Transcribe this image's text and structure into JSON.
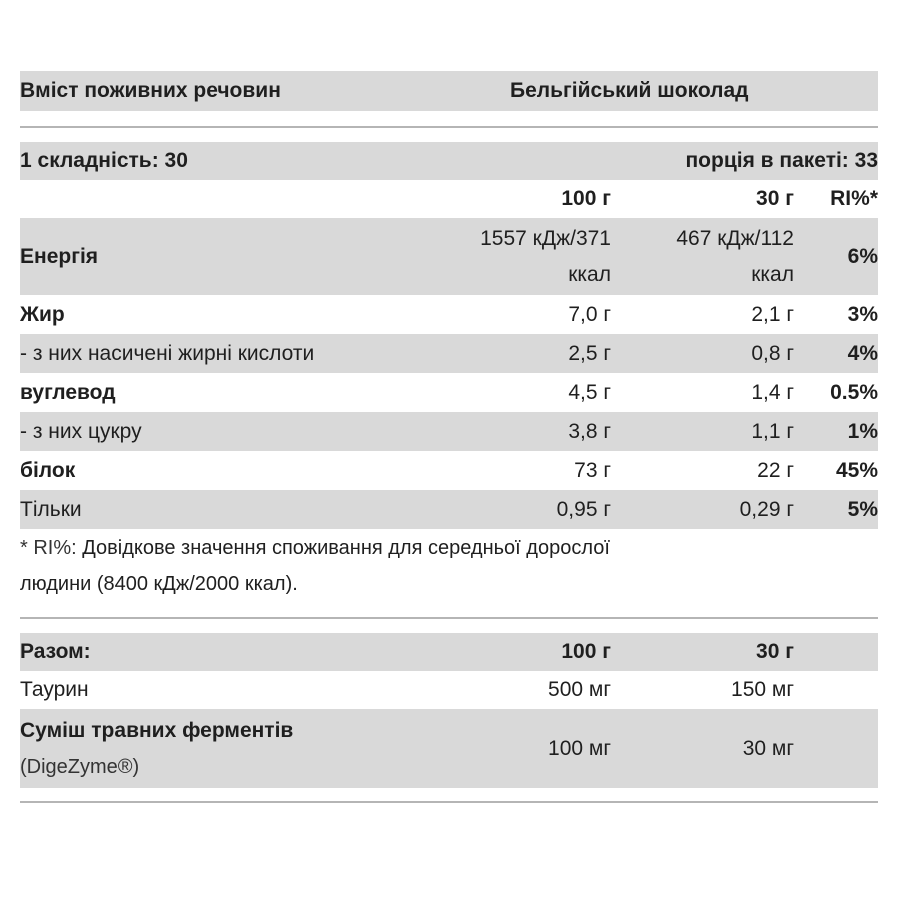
{
  "header": {
    "title_left": "Вміст поживних речовин",
    "title_right": "Бельгійський шоколад"
  },
  "serving": {
    "left": "1 складність: 30",
    "right": "порція в пакеті: 33"
  },
  "columns": {
    "per100": "100 г",
    "per30": "30 г",
    "ri": "RI%*"
  },
  "nutrients": [
    {
      "name": "Енергія",
      "per100_line1": "1557 кДж/371",
      "per100_line2": "ккал",
      "per30_line1": "467 кДж/112",
      "per30_line2": "ккал",
      "ri": "6%"
    },
    {
      "name": "Жир",
      "per100": "7,0 г",
      "per30": "2,1 г",
      "ri": "3%"
    },
    {
      "name": "- з них насичені жирні кислоти",
      "per100": "2,5 г",
      "per30": "0,8 г",
      "ri": "4%"
    },
    {
      "name": "вуглевод",
      "per100": "4,5 г",
      "per30": "1,4 г",
      "ri": "0.5%"
    },
    {
      "name": "- з них цукру",
      "per100": "3,8 г",
      "per30": "1,1 г",
      "ri": "1%"
    },
    {
      "name": "білок",
      "per100": "73 г",
      "per30": "22 г",
      "ri": "45%"
    },
    {
      "name": "Тільки",
      "per100": "0,95 г",
      "per30": "0,29 г",
      "ri": "5%"
    }
  ],
  "footnote": {
    "marker": "* RI%:",
    "line1": "Довідкове значення споживання для середньої дорослої",
    "line2": "людини (8400 кДж/2000 ккал)."
  },
  "extras": {
    "header_label": "Разом:",
    "header_per100": "100 г",
    "header_per30": "30 г",
    "rows": [
      {
        "name": "Таурин",
        "per100": "500 мг",
        "per30": "150 мг"
      },
      {
        "name": "Суміш травних ферментів",
        "sub": "(DigeZyme®)",
        "per100": "100 мг",
        "per30": "30 мг"
      }
    ]
  }
}
